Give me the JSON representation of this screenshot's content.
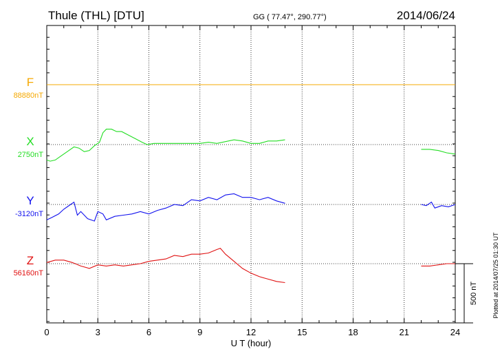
{
  "header": {
    "station": "Thule (THL)  [DTU]",
    "coords": "GG ( 77.47°, 290.77°)",
    "date": "2014/06/24"
  },
  "plotted_note": "Plotted at 2014/07/25 01:30 UT",
  "chart_data": {
    "type": "line",
    "title": "Thule (THL)  [DTU]",
    "xlabel": "U T (hour)",
    "xlim": [
      0,
      24
    ],
    "xticks": [
      0,
      3,
      6,
      9,
      12,
      15,
      18,
      21,
      24
    ],
    "scale_bar": {
      "label": "500 nT",
      "value_nT": 500
    },
    "units": "nT",
    "series": [
      {
        "name": "F",
        "baseline_label": "88880nT",
        "baseline": 88880,
        "color": "#f5a800",
        "segments": [
          {
            "x": [
              0,
              24
            ],
            "y": [
              88880,
              88880
            ]
          }
        ]
      },
      {
        "name": "X",
        "baseline_label": "2750nT",
        "baseline": 2750,
        "color": "#22dd22",
        "segments": [
          {
            "x": [
              0,
              0.2,
              0.5,
              0.8,
              1.2,
              1.6,
              1.9,
              2.2,
              2.5,
              2.8,
              3.1,
              3.3,
              3.5,
              3.8,
              4.1,
              4.4,
              4.8,
              5.2,
              5.6,
              5.9,
              6.3,
              7,
              8,
              8.5,
              9,
              9.5,
              10,
              11,
              11.5,
              12,
              12.5,
              13,
              13.5,
              14
            ],
            "y": [
              2620,
              2610,
              2620,
              2650,
              2690,
              2730,
              2720,
              2690,
              2700,
              2740,
              2770,
              2850,
              2880,
              2880,
              2860,
              2860,
              2830,
              2800,
              2770,
              2750,
              2760,
              2760,
              2760,
              2760,
              2760,
              2770,
              2760,
              2790,
              2780,
              2760,
              2760,
              2780,
              2780,
              2790
            ]
          },
          {
            "x": [
              22,
              22.5,
              23,
              23.5,
              24
            ],
            "y": [
              2710,
              2710,
              2700,
              2680,
              2670
            ]
          }
        ]
      },
      {
        "name": "Y",
        "baseline_label": "-3120nT",
        "baseline": -3120,
        "color": "#1010ee",
        "segments": [
          {
            "x": [
              0,
              0.3,
              0.7,
              1,
              1.4,
              1.6,
              1.8,
              2,
              2.4,
              2.8,
              3,
              3.3,
              3.5,
              4,
              4.5,
              5,
              5.5,
              6,
              6.5,
              7,
              7.5,
              8,
              8.5,
              9,
              9.5,
              10,
              10.5,
              11,
              11.5,
              12,
              12.5,
              13,
              13.5,
              14
            ],
            "y": [
              -3250,
              -3230,
              -3200,
              -3160,
              -3120,
              -3100,
              -3210,
              -3180,
              -3240,
              -3260,
              -3180,
              -3200,
              -3250,
              -3220,
              -3210,
              -3200,
              -3180,
              -3200,
              -3170,
              -3150,
              -3120,
              -3130,
              -3080,
              -3090,
              -3060,
              -3080,
              -3040,
              -3030,
              -3060,
              -3060,
              -3080,
              -3060,
              -3090,
              -3110
            ]
          },
          {
            "x": [
              22,
              22.3,
              22.6,
              22.8,
              23.2,
              23.6,
              24
            ],
            "y": [
              -3120,
              -3130,
              -3100,
              -3150,
              -3130,
              -3140,
              -3120
            ]
          }
        ]
      },
      {
        "name": "Z",
        "baseline_label": "56160nT",
        "baseline": 56160,
        "color": "#e01010",
        "segments": [
          {
            "x": [
              0,
              0.5,
              1,
              1.5,
              2,
              2.5,
              3,
              3.5,
              4,
              4.5,
              5,
              5.5,
              6,
              6.5,
              7,
              7.5,
              8,
              8.5,
              9,
              9.5,
              10,
              10.2,
              10.5,
              11,
              11.5,
              12,
              12.5,
              13,
              13.5,
              14
            ],
            "y": [
              56170,
              56190,
              56190,
              56170,
              56140,
              56120,
              56150,
              56140,
              56150,
              56140,
              56150,
              56160,
              56180,
              56190,
              56200,
              56230,
              56220,
              56240,
              56240,
              56250,
              56280,
              56290,
              56240,
              56180,
              56120,
              56080,
              56050,
              56030,
              56010,
              56000
            ]
          },
          {
            "x": [
              22,
              22.5,
              23,
              23.5,
              24
            ],
            "y": [
              56140,
              56140,
              56150,
              56160,
              56160
            ]
          }
        ]
      }
    ]
  }
}
